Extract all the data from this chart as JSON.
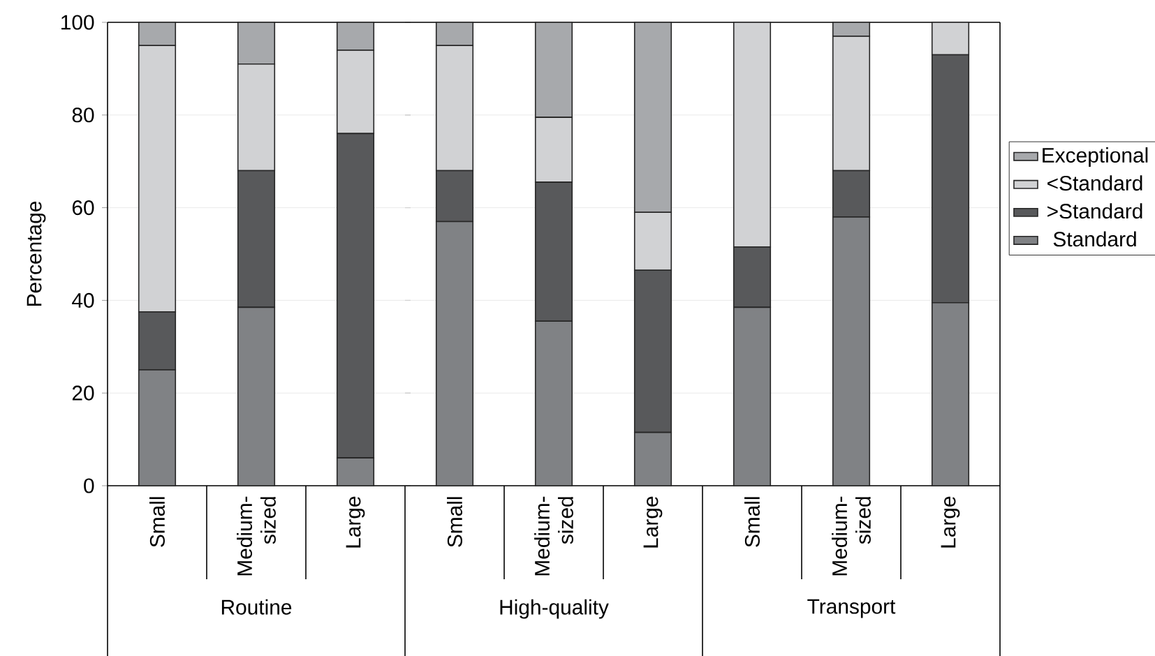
{
  "chart_data": [
    {
      "type": "bar",
      "stacked": true,
      "xlabel": "Routine",
      "ylabel": "Percentage",
      "categories": [
        "Small",
        "Medium-sized",
        "Large"
      ],
      "ylim": [
        0,
        100
      ],
      "yticks": [
        0,
        20,
        40,
        60,
        80,
        100
      ],
      "grid": "y",
      "series": [
        {
          "color": "#808285",
          "values": [
            25,
            38.5,
            6
          ]
        },
        {
          "color": "#58595b",
          "values": [
            12.5,
            29.5,
            70
          ]
        },
        {
          "color": "#d1d2d4",
          "values": [
            57.5,
            23,
            18
          ]
        },
        {
          "color": "#a7a9ac",
          "values": [
            5,
            9,
            6
          ]
        }
      ]
    },
    {
      "type": "bar",
      "stacked": true,
      "xlabel": "High-quality",
      "categories": [
        "Small",
        "Medium-sized",
        "Large"
      ],
      "ylim": [
        0,
        100
      ],
      "yticks": [
        0,
        20,
        40,
        60,
        80,
        100
      ],
      "grid": "y",
      "tick_labels": "x",
      "series": [
        {
          "color": "#808285",
          "values": [
            57,
            35.5,
            11.5
          ]
        },
        {
          "color": "#58595b",
          "values": [
            11,
            30,
            35
          ]
        },
        {
          "color": "#d1d2d4",
          "values": [
            27,
            14,
            12.5
          ]
        },
        {
          "color": "#a7a9ac",
          "values": [
            5,
            20.5,
            41
          ]
        }
      ]
    },
    {
      "type": "bar",
      "stacked": true,
      "xlabel": "Transport",
      "categories": [
        "Small",
        "Medium-sized",
        "Large"
      ],
      "ylim": [
        0,
        100
      ],
      "yticks": [
        0,
        20,
        40,
        60,
        80,
        100
      ],
      "grid": "y",
      "tick_labels": "x",
      "legend": "right",
      "series": [
        {
          "name": "Standard",
          "color": "#808285",
          "values": [
            38.5,
            58,
            39.5
          ]
        },
        {
          "name": ">Standard",
          "color": "#58595b",
          "values": [
            13,
            10,
            53.5
          ]
        },
        {
          "name": "<Standard",
          "color": "#d1d2d4",
          "values": [
            48.5,
            29,
            7
          ]
        },
        {
          "name": "Exceptional",
          "color": "#a7a9ac",
          "values": [
            0,
            3,
            0
          ]
        }
      ]
    }
  ]
}
